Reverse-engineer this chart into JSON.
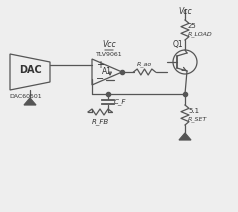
{
  "bg_color": "#eeeeee",
  "line_color": "#555555",
  "text_color": "#333333",
  "fig_width": 2.38,
  "fig_height": 2.12,
  "dpi": 100,
  "labels": {
    "vcc_top": "Vcc",
    "vcc_opamp": "Vcc",
    "rload": "R_LOAD",
    "rload_val": "25",
    "q1": "Q1",
    "opamp_name": "TLV9061",
    "opamp_label": "A1",
    "rao": "R_ao",
    "dac_label": "DAC",
    "dac60501": "DAC60501",
    "cf": "C_F",
    "rfb": "R_FB",
    "rset": "R_SET",
    "rset_val": "5.1"
  }
}
